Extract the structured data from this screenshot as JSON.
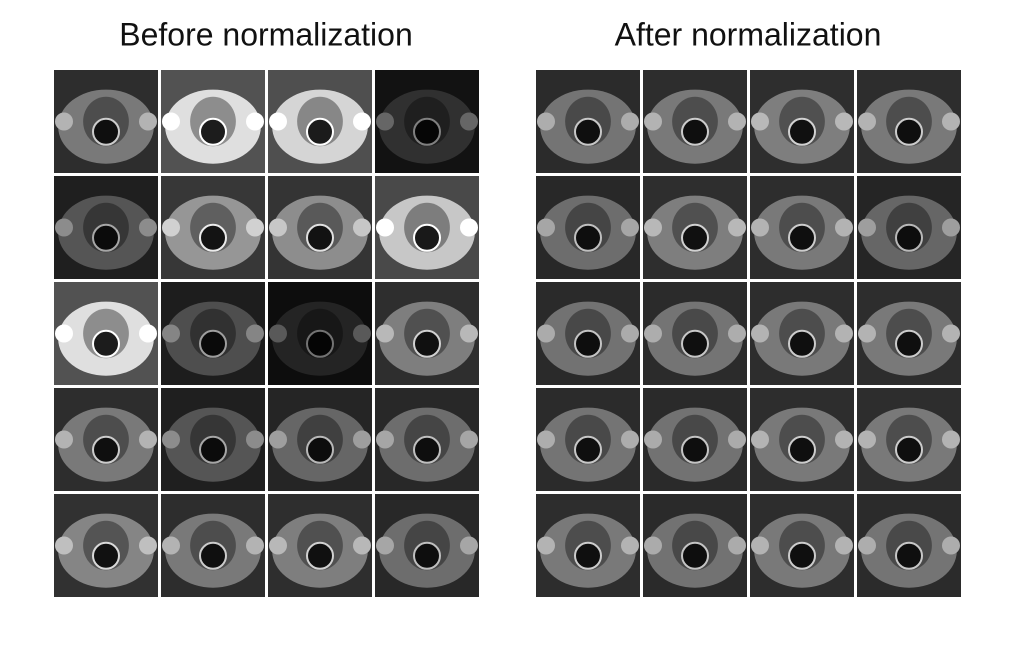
{
  "panels": [
    {
      "title": "Before normalization"
    },
    {
      "title": "After normalization"
    }
  ]
}
